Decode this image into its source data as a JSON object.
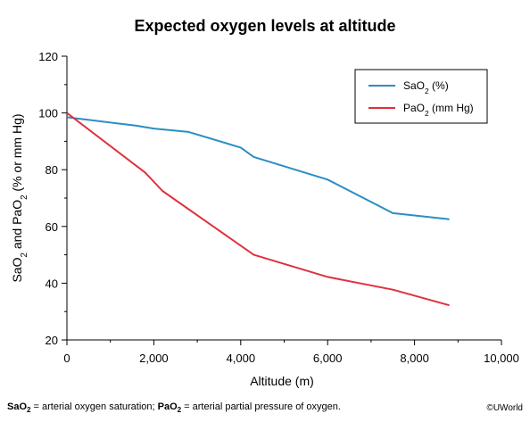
{
  "chart_data": {
    "type": "line",
    "title": "Expected oxygen levels at altitude",
    "xlabel": "Altitude (m)",
    "ylabel": {
      "parts": [
        "SaO",
        "2",
        " and PaO",
        "2",
        " (% or mm Hg)"
      ]
    },
    "xlim": [
      0,
      10000
    ],
    "ylim": [
      20,
      120
    ],
    "x_ticks": [
      0,
      2000,
      4000,
      6000,
      8000,
      10000
    ],
    "x_tick_labels": [
      "0",
      "2,000",
      "4,000",
      "6,000",
      "8,000",
      "10,000"
    ],
    "y_ticks": [
      20,
      40,
      60,
      80,
      100,
      120
    ],
    "y_tick_labels": [
      "20",
      "40",
      "60",
      "80",
      "100",
      "120"
    ],
    "grid": false,
    "legend_position": "top-right",
    "series": [
      {
        "name": "SaO2 (%)",
        "legend_parts": [
          "SaO",
          "2",
          " (%)"
        ],
        "color": "#2a8ec4",
        "points": [
          [
            0,
            98.5
          ],
          [
            1600,
            95.5
          ],
          [
            2000,
            94.5
          ],
          [
            2800,
            93.3
          ],
          [
            4000,
            87.8
          ],
          [
            4300,
            84.5
          ],
          [
            6000,
            76.5
          ],
          [
            7500,
            64.7
          ],
          [
            8800,
            62.5
          ]
        ]
      },
      {
        "name": "PaO2 (mm Hg)",
        "legend_parts": [
          "PaO",
          "2",
          " (mm Hg)"
        ],
        "color": "#e0303f",
        "points": [
          [
            0,
            100
          ],
          [
            1800,
            79
          ],
          [
            2200,
            72.5
          ],
          [
            4300,
            50
          ],
          [
            6000,
            42.2
          ],
          [
            7500,
            37.7
          ],
          [
            8800,
            32.2
          ]
        ]
      }
    ]
  },
  "footnote": {
    "term1": "SaO",
    "term1_sub": "2",
    "def1": " = arterial oxygen saturation; ",
    "term2": "PaO",
    "term2_sub": "2",
    "def2": " = arterial partial pressure of oxygen."
  },
  "copyright": "©UWorld"
}
